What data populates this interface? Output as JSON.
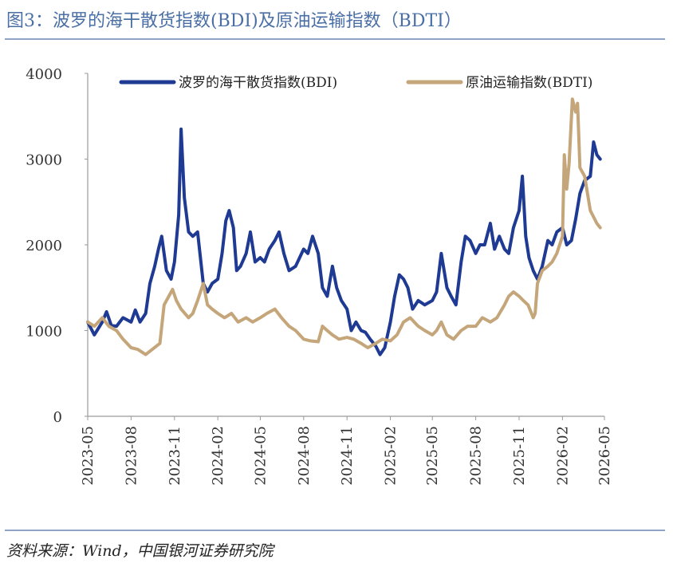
{
  "header": {
    "title": "图3：波罗的海干散货指数(BDI)及原油运输指数（BDTI）"
  },
  "footer": {
    "source": "资料来源：Wind，中国银河证券研究院"
  },
  "chart_data": {
    "type": "line",
    "title": "",
    "xlabel": "",
    "ylabel": "",
    "ylim": [
      0,
      4000
    ],
    "yticks": [
      "0",
      "1000",
      "2000",
      "3000",
      "4000"
    ],
    "xlim": [
      "2023-05",
      "2026-05"
    ],
    "xticks": [
      "2023-05",
      "2023-08",
      "2023-11",
      "2024-02",
      "2024-05",
      "2024-08",
      "2024-11",
      "2025-02",
      "2025-05",
      "2025-08",
      "2025-11",
      "2026-02",
      "2026-05"
    ],
    "legend_position": "top",
    "grid": false,
    "series": [
      {
        "name": "波罗的海干散货指数(BDI)",
        "color": "#1f3a93",
        "points": [
          [
            "2023-05",
            1100
          ],
          [
            "2023-05-15",
            950
          ],
          [
            "2023-06",
            1100
          ],
          [
            "2023-06-10",
            1220
          ],
          [
            "2023-06-20",
            1060
          ],
          [
            "2023-07",
            1050
          ],
          [
            "2023-07-15",
            1150
          ],
          [
            "2023-08",
            1100
          ],
          [
            "2023-08-10",
            1240
          ],
          [
            "2023-08-20",
            1100
          ],
          [
            "2023-09",
            1200
          ],
          [
            "2023-09-10",
            1550
          ],
          [
            "2023-09-20",
            1750
          ],
          [
            "2023-09-28",
            1950
          ],
          [
            "2023-10-05",
            2100
          ],
          [
            "2023-10-15",
            1700
          ],
          [
            "2023-10-25",
            1600
          ],
          [
            "2023-11",
            1800
          ],
          [
            "2023-11-10",
            2350
          ],
          [
            "2023-11-15",
            3350
          ],
          [
            "2023-11-22",
            2550
          ],
          [
            "2023-12",
            2150
          ],
          [
            "2023-12-10",
            2100
          ],
          [
            "2023-12-20",
            2150
          ],
          [
            "2024-01",
            1550
          ],
          [
            "2024-01-10",
            1450
          ],
          [
            "2024-01-20",
            1550
          ],
          [
            "2024-02",
            1600
          ],
          [
            "2024-02-10",
            1900
          ],
          [
            "2024-02-18",
            2280
          ],
          [
            "2024-02-25",
            2400
          ],
          [
            "2024-03-05",
            2200
          ],
          [
            "2024-03-12",
            1700
          ],
          [
            "2024-03-20",
            1750
          ],
          [
            "2024-04",
            1900
          ],
          [
            "2024-04-10",
            2150
          ],
          [
            "2024-04-20",
            1800
          ],
          [
            "2024-05",
            1850
          ],
          [
            "2024-05-10",
            1800
          ],
          [
            "2024-05-20",
            1950
          ],
          [
            "2024-06",
            2050
          ],
          [
            "2024-06-10",
            2150
          ],
          [
            "2024-06-20",
            1900
          ],
          [
            "2024-07",
            1700
          ],
          [
            "2024-07-15",
            1750
          ],
          [
            "2024-08",
            1950
          ],
          [
            "2024-08-10",
            1900
          ],
          [
            "2024-08-20",
            2100
          ],
          [
            "2024-09",
            1900
          ],
          [
            "2024-09-10",
            1500
          ],
          [
            "2024-09-20",
            1400
          ],
          [
            "2024-10",
            1750
          ],
          [
            "2024-10-10",
            1500
          ],
          [
            "2024-10-20",
            1350
          ],
          [
            "2024-11",
            1250
          ],
          [
            "2024-11-10",
            1000
          ],
          [
            "2024-11-20",
            1100
          ],
          [
            "2024-12",
            1000
          ],
          [
            "2024-12-10",
            980
          ],
          [
            "2024-12-20",
            900
          ],
          [
            "2025-01",
            820
          ],
          [
            "2025-01-10",
            720
          ],
          [
            "2025-01-20",
            800
          ],
          [
            "2025-02",
            1100
          ],
          [
            "2025-02-10",
            1400
          ],
          [
            "2025-02-20",
            1650
          ],
          [
            "2025-03",
            1600
          ],
          [
            "2025-03-10",
            1500
          ],
          [
            "2025-03-20",
            1250
          ],
          [
            "2025-04",
            1350
          ],
          [
            "2025-04-15",
            1300
          ],
          [
            "2025-05",
            1350
          ],
          [
            "2025-05-10",
            1450
          ],
          [
            "2025-05-20",
            1900
          ],
          [
            "2025-06",
            1500
          ],
          [
            "2025-06-10",
            1400
          ],
          [
            "2025-06-20",
            1300
          ],
          [
            "2025-07",
            1800
          ],
          [
            "2025-07-10",
            2100
          ],
          [
            "2025-07-20",
            2050
          ],
          [
            "2025-08",
            1900
          ],
          [
            "2025-08-10",
            2000
          ],
          [
            "2025-08-20",
            2000
          ],
          [
            "2025-09",
            2250
          ],
          [
            "2025-09-10",
            1950
          ],
          [
            "2025-09-20",
            2100
          ],
          [
            "2025-10",
            1950
          ],
          [
            "2025-10-10",
            1900
          ],
          [
            "2025-10-20",
            2200
          ],
          [
            "2025-11",
            2400
          ],
          [
            "2025-11-08",
            2800
          ],
          [
            "2025-11-15",
            2100
          ],
          [
            "2025-11-22",
            1850
          ],
          [
            "2025-12",
            1700
          ],
          [
            "2025-12-10",
            1600
          ],
          [
            "2025-12-20",
            1750
          ],
          [
            "2026-01",
            2050
          ],
          [
            "2026-01-10",
            2000
          ],
          [
            "2026-01-20",
            2150
          ],
          [
            "2026-02",
            2200
          ],
          [
            "2026-02-10",
            2000
          ],
          [
            "2026-02-20",
            2050
          ],
          [
            "2026-03",
            2300
          ],
          [
            "2026-03-10",
            2600
          ],
          [
            "2026-03-20",
            2750
          ],
          [
            "2026-04",
            2800
          ],
          [
            "2026-04-08",
            3200
          ],
          [
            "2026-04-15",
            3050
          ],
          [
            "2026-04-22",
            3000
          ]
        ]
      },
      {
        "name": "原油运输指数(BDTI)",
        "color": "#c4a67a",
        "points": [
          [
            "2023-05",
            1100
          ],
          [
            "2023-05-15",
            1050
          ],
          [
            "2023-06",
            1150
          ],
          [
            "2023-06-15",
            1050
          ],
          [
            "2023-07",
            1000
          ],
          [
            "2023-07-15",
            900
          ],
          [
            "2023-08",
            800
          ],
          [
            "2023-08-15",
            780
          ],
          [
            "2023-09",
            720
          ],
          [
            "2023-09-15",
            780
          ],
          [
            "2023-10",
            850
          ],
          [
            "2023-10-10",
            1300
          ],
          [
            "2023-10-20",
            1400
          ],
          [
            "2023-10-28",
            1480
          ],
          [
            "2023-11-05",
            1350
          ],
          [
            "2023-11-15",
            1250
          ],
          [
            "2023-12",
            1150
          ],
          [
            "2023-12-10",
            1200
          ],
          [
            "2023-12-20",
            1350
          ],
          [
            "2024-01",
            1550
          ],
          [
            "2024-01-10",
            1300
          ],
          [
            "2024-01-20",
            1250
          ],
          [
            "2024-02",
            1200
          ],
          [
            "2024-02-15",
            1150
          ],
          [
            "2024-03",
            1200
          ],
          [
            "2024-03-15",
            1100
          ],
          [
            "2024-04",
            1150
          ],
          [
            "2024-04-15",
            1100
          ],
          [
            "2024-05",
            1150
          ],
          [
            "2024-05-15",
            1200
          ],
          [
            "2024-06",
            1250
          ],
          [
            "2024-06-15",
            1150
          ],
          [
            "2024-07",
            1050
          ],
          [
            "2024-07-15",
            1000
          ],
          [
            "2024-08",
            900
          ],
          [
            "2024-08-15",
            880
          ],
          [
            "2024-09",
            870
          ],
          [
            "2024-09-10",
            1050
          ],
          [
            "2024-09-20",
            1000
          ],
          [
            "2024-10",
            950
          ],
          [
            "2024-10-15",
            900
          ],
          [
            "2024-11",
            920
          ],
          [
            "2024-11-15",
            900
          ],
          [
            "2024-12",
            850
          ],
          [
            "2024-12-15",
            800
          ],
          [
            "2025-01",
            850
          ],
          [
            "2025-01-15",
            900
          ],
          [
            "2025-02",
            880
          ],
          [
            "2025-02-15",
            950
          ],
          [
            "2025-03",
            1100
          ],
          [
            "2025-03-15",
            1150
          ],
          [
            "2025-04",
            1050
          ],
          [
            "2025-04-15",
            1000
          ],
          [
            "2025-05",
            950
          ],
          [
            "2025-05-10",
            1000
          ],
          [
            "2025-05-20",
            1100
          ],
          [
            "2025-06",
            950
          ],
          [
            "2025-06-15",
            900
          ],
          [
            "2025-07",
            1000
          ],
          [
            "2025-07-15",
            1050
          ],
          [
            "2025-08",
            1050
          ],
          [
            "2025-08-15",
            1150
          ],
          [
            "2025-09",
            1100
          ],
          [
            "2025-09-15",
            1150
          ],
          [
            "2025-10",
            1300
          ],
          [
            "2025-10-10",
            1400
          ],
          [
            "2025-10-20",
            1450
          ],
          [
            "2025-11",
            1400
          ],
          [
            "2025-11-10",
            1350
          ],
          [
            "2025-11-20",
            1300
          ],
          [
            "2025-12",
            1150
          ],
          [
            "2025-12-05",
            1200
          ],
          [
            "2025-12-10",
            1550
          ],
          [
            "2025-12-20",
            1700
          ],
          [
            "2026-01",
            1750
          ],
          [
            "2026-01-10",
            1800
          ],
          [
            "2026-01-20",
            1900
          ],
          [
            "2026-02",
            2100
          ],
          [
            "2026-02-05",
            3050
          ],
          [
            "2026-02-10",
            2650
          ],
          [
            "2026-02-15",
            2950
          ],
          [
            "2026-02-22",
            3700
          ],
          [
            "2026-03",
            3550
          ],
          [
            "2026-03-05",
            3650
          ],
          [
            "2026-03-10",
            2900
          ],
          [
            "2026-03-20",
            2800
          ],
          [
            "2026-04",
            2400
          ],
          [
            "2026-04-15",
            2250
          ],
          [
            "2026-04-22",
            2200
          ]
        ]
      }
    ]
  }
}
